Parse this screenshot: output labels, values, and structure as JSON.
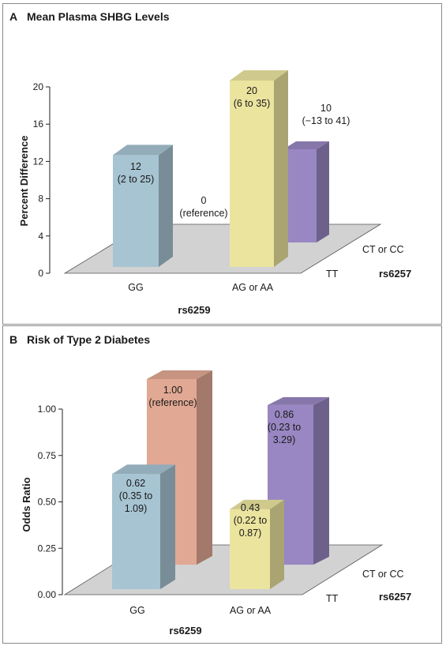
{
  "chart_data": [
    {
      "type": "bar",
      "panel_letter": "A",
      "title": "Mean Plasma SHBG Levels",
      "ylabel": "Percent Difference",
      "xlabel": "rs6259",
      "zlabel": "rs6257",
      "categories": [
        "GG",
        "AG or AA"
      ],
      "depth_categories": [
        "CT or CC",
        "TT"
      ],
      "ylim": [
        0,
        20
      ],
      "yticks": [
        "0",
        "4",
        "8",
        "12",
        "16",
        "20"
      ],
      "series": [
        {
          "name": "CT or CC",
          "values": [
            0,
            10
          ],
          "labels": [
            "0|(reference)",
            "10|(−13 to 41)"
          ]
        },
        {
          "name": "TT",
          "values": [
            12,
            20
          ],
          "labels": [
            "12|(2 to 25)",
            "20|(6 to 35)"
          ]
        }
      ],
      "colors": {
        "blue": "#a7c4d2",
        "salmon": "#e1a893",
        "yellow": "#ebe49f",
        "purple": "#9887c2",
        "floor": "#d2d2d2"
      }
    },
    {
      "type": "bar",
      "panel_letter": "B",
      "title": "Risk of Type 2 Diabetes",
      "ylabel": "Odds Ratio",
      "xlabel": "rs6259",
      "zlabel": "rs6257",
      "categories": [
        "GG",
        "AG or AA"
      ],
      "depth_categories": [
        "CT or CC",
        "TT"
      ],
      "ylim": [
        0,
        1
      ],
      "yticks": [
        "0.00",
        "0.25",
        "0.50",
        "0.75",
        "1.00"
      ],
      "series": [
        {
          "name": "CT or CC",
          "values": [
            1.0,
            0.86
          ],
          "labels": [
            "1.00|(reference)",
            "0.86|(0.23 to|3.29)"
          ]
        },
        {
          "name": "TT",
          "values": [
            0.62,
            0.43
          ],
          "labels": [
            "0.62|(0.35 to|1.09)",
            "0.43|(0.22 to|0.87)"
          ]
        }
      ],
      "colors": {
        "blue": "#a7c4d2",
        "salmon": "#e1a893",
        "yellow": "#ebe49f",
        "purple": "#9887c2",
        "floor": "#d2d2d2"
      }
    }
  ]
}
